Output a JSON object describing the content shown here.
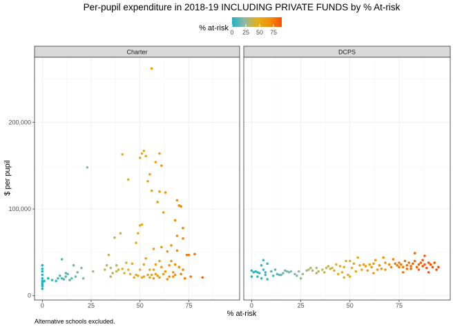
{
  "chart_data": {
    "type": "scatter",
    "title": "Per-pupil expenditure in 2018-19 INCLUDING PRIVATE FUNDS by % At-risk",
    "xlabel": "% at-risk",
    "ylabel": "$ per pupil",
    "caption": "Alternative schools excluded.",
    "xlim": [
      -4,
      101
    ],
    "ylim": [
      -5000,
      275000
    ],
    "x_ticks": [
      0,
      25,
      50,
      75
    ],
    "x_tick_labels": [
      "0",
      "25",
      "50",
      "75"
    ],
    "y_ticks": [
      0,
      100000,
      200000
    ],
    "y_tick_labels": [
      "0",
      "100,000",
      "200,000"
    ],
    "grid": true,
    "legend": {
      "title": "% at-risk",
      "position": "top",
      "ticks": [
        0,
        25,
        50,
        75
      ],
      "tick_labels": [
        "0",
        "25",
        "50",
        "75"
      ],
      "range": [
        0,
        90
      ],
      "colors": [
        "#1fb3c5",
        "#8fb8a4",
        "#e3b11a",
        "#f29107",
        "#ff4d00"
      ]
    },
    "panels": [
      {
        "name": "Charter",
        "points": [
          [
            0,
            8000
          ],
          [
            0,
            11000
          ],
          [
            0,
            13000
          ],
          [
            0,
            15000
          ],
          [
            0,
            17000
          ],
          [
            0,
            20000
          ],
          [
            0,
            24000
          ],
          [
            0,
            28000
          ],
          [
            0,
            31000
          ],
          [
            0,
            35000
          ],
          [
            1,
            17000
          ],
          [
            3,
            20000
          ],
          [
            5,
            18000
          ],
          [
            7,
            17000
          ],
          [
            8,
            20000
          ],
          [
            9,
            23000
          ],
          [
            10,
            42000
          ],
          [
            10,
            20000
          ],
          [
            11,
            19000
          ],
          [
            12,
            26000
          ],
          [
            12,
            22000
          ],
          [
            13,
            25000
          ],
          [
            14,
            18000
          ],
          [
            15,
            20000
          ],
          [
            16,
            35000
          ],
          [
            17,
            22000
          ],
          [
            18,
            27000
          ],
          [
            20,
            32000
          ],
          [
            21,
            20000
          ],
          [
            23,
            148000
          ],
          [
            26,
            28000
          ],
          [
            32,
            30000
          ],
          [
            33,
            35000
          ],
          [
            34,
            47000
          ],
          [
            35,
            32000
          ],
          [
            35,
            22000
          ],
          [
            36,
            26000
          ],
          [
            37,
            67000
          ],
          [
            38,
            35000
          ],
          [
            38,
            28000
          ],
          [
            39,
            30000
          ],
          [
            40,
            72000
          ],
          [
            41,
            31000
          ],
          [
            41,
            163000
          ],
          [
            42,
            26000
          ],
          [
            43,
            38000
          ],
          [
            44,
            134000
          ],
          [
            44,
            30000
          ],
          [
            45,
            25000
          ],
          [
            46,
            37000
          ],
          [
            47,
            21000
          ],
          [
            48,
            61000
          ],
          [
            48,
            24000
          ],
          [
            49,
            72000
          ],
          [
            49,
            23000
          ],
          [
            50,
            81000
          ],
          [
            50,
            159000
          ],
          [
            50,
            30000
          ],
          [
            51,
            82000
          ],
          [
            51,
            164000
          ],
          [
            51,
            21000
          ],
          [
            52,
            167000
          ],
          [
            52,
            22000
          ],
          [
            52,
            36000
          ],
          [
            53,
            43000
          ],
          [
            53,
            161000
          ],
          [
            54,
            132000
          ],
          [
            54,
            24000
          ],
          [
            55,
            140000
          ],
          [
            55,
            21000
          ],
          [
            56,
            262000
          ],
          [
            56,
            121000
          ],
          [
            56,
            24000
          ],
          [
            57,
            54000
          ],
          [
            57,
            30000
          ],
          [
            57,
            20000
          ],
          [
            58,
            154000
          ],
          [
            58,
            25000
          ],
          [
            59,
            108000
          ],
          [
            59,
            23000
          ],
          [
            60,
            164000
          ],
          [
            60,
            120000
          ],
          [
            60,
            40000
          ],
          [
            60,
            21000
          ],
          [
            61,
            56000
          ],
          [
            61,
            150000
          ],
          [
            61,
            33000
          ],
          [
            62,
            96000
          ],
          [
            62,
            25000
          ],
          [
            63,
            119000
          ],
          [
            63,
            28000
          ],
          [
            64,
            51000
          ],
          [
            64,
            19000
          ],
          [
            65,
            35000
          ],
          [
            65,
            22000
          ],
          [
            66,
            40000
          ],
          [
            67,
            27000
          ],
          [
            68,
            87000
          ],
          [
            68,
            36000
          ],
          [
            68,
            24000
          ],
          [
            69,
            110000
          ],
          [
            69,
            52000
          ],
          [
            70,
            104000
          ],
          [
            70,
            33000
          ],
          [
            71,
            25000
          ],
          [
            72,
            66000
          ],
          [
            72,
            30000
          ],
          [
            73,
            20000
          ],
          [
            74,
            47000
          ],
          [
            75,
            47000
          ],
          [
            76,
            22000
          ],
          [
            78,
            48000
          ],
          [
            82,
            21000
          ],
          [
            71,
            103000
          ],
          [
            72,
            78000
          ],
          [
            69,
            69000
          ],
          [
            66,
            58000
          ],
          [
            58,
            36000
          ],
          [
            55,
            30000
          ],
          [
            67,
            22000
          ]
        ]
      },
      {
        "name": "DCPS",
        "points": [
          [
            0,
            29000
          ],
          [
            0,
            22000
          ],
          [
            1,
            27000
          ],
          [
            2,
            28000
          ],
          [
            3,
            27000
          ],
          [
            3,
            22000
          ],
          [
            4,
            26000
          ],
          [
            5,
            35000
          ],
          [
            5,
            20000
          ],
          [
            6,
            41000
          ],
          [
            6,
            30000
          ],
          [
            7,
            27000
          ],
          [
            7,
            24000
          ],
          [
            8,
            37000
          ],
          [
            8,
            19000
          ],
          [
            10,
            28000
          ],
          [
            11,
            23000
          ],
          [
            12,
            30000
          ],
          [
            13,
            25000
          ],
          [
            15,
            24000
          ],
          [
            16,
            26000
          ],
          [
            17,
            29000
          ],
          [
            18,
            28000
          ],
          [
            19,
            27000
          ],
          [
            20,
            28000
          ],
          [
            22,
            25000
          ],
          [
            24,
            28000
          ],
          [
            25,
            20000
          ],
          [
            26,
            25000
          ],
          [
            28,
            29000
          ],
          [
            29,
            30000
          ],
          [
            30,
            32000
          ],
          [
            31,
            29000
          ],
          [
            33,
            32000
          ],
          [
            34,
            28000
          ],
          [
            36,
            30000
          ],
          [
            37,
            27000
          ],
          [
            38,
            32000
          ],
          [
            39,
            34000
          ],
          [
            40,
            31000
          ],
          [
            41,
            32000
          ],
          [
            42,
            29000
          ],
          [
            43,
            36000
          ],
          [
            44,
            25000
          ],
          [
            45,
            34000
          ],
          [
            46,
            27000
          ],
          [
            47,
            33000
          ],
          [
            48,
            40000
          ],
          [
            49,
            24000
          ],
          [
            50,
            22000
          ],
          [
            50,
            40000
          ],
          [
            51,
            32000
          ],
          [
            52,
            37000
          ],
          [
            53,
            28000
          ],
          [
            54,
            44000
          ],
          [
            55,
            35000
          ],
          [
            56,
            30000
          ],
          [
            57,
            36000
          ],
          [
            58,
            34000
          ],
          [
            59,
            29000
          ],
          [
            60,
            36000
          ],
          [
            61,
            33000
          ],
          [
            62,
            37000
          ],
          [
            63,
            41000
          ],
          [
            64,
            30000
          ],
          [
            65,
            35000
          ],
          [
            66,
            31000
          ],
          [
            67,
            44000
          ],
          [
            68,
            30000
          ],
          [
            68,
            38000
          ],
          [
            70,
            36000
          ],
          [
            71,
            33000
          ],
          [
            72,
            42000
          ],
          [
            73,
            37000
          ],
          [
            74,
            35000
          ],
          [
            75,
            38000
          ],
          [
            75,
            33000
          ],
          [
            76,
            36000
          ],
          [
            77,
            33000
          ],
          [
            78,
            40000
          ],
          [
            79,
            31000
          ],
          [
            79,
            35000
          ],
          [
            80,
            38000
          ],
          [
            81,
            34000
          ],
          [
            81,
            31000
          ],
          [
            82,
            37000
          ],
          [
            83,
            49000
          ],
          [
            83,
            40000
          ],
          [
            84,
            33000
          ],
          [
            85,
            36000
          ],
          [
            86,
            38000
          ],
          [
            87,
            41000
          ],
          [
            87,
            34000
          ],
          [
            88,
            46000
          ],
          [
            88,
            36000
          ],
          [
            89,
            32000
          ],
          [
            90,
            38000
          ],
          [
            90,
            27000
          ],
          [
            91,
            36000
          ],
          [
            92,
            33000
          ],
          [
            93,
            38000
          ],
          [
            94,
            30000
          ],
          [
            95,
            33000
          ],
          [
            85,
            30000
          ],
          [
            77,
            27000
          ],
          [
            62,
            26000
          ],
          [
            47,
            21000
          ],
          [
            33,
            26000
          ],
          [
            23,
            23000
          ],
          [
            14,
            24000
          ]
        ]
      }
    ]
  }
}
